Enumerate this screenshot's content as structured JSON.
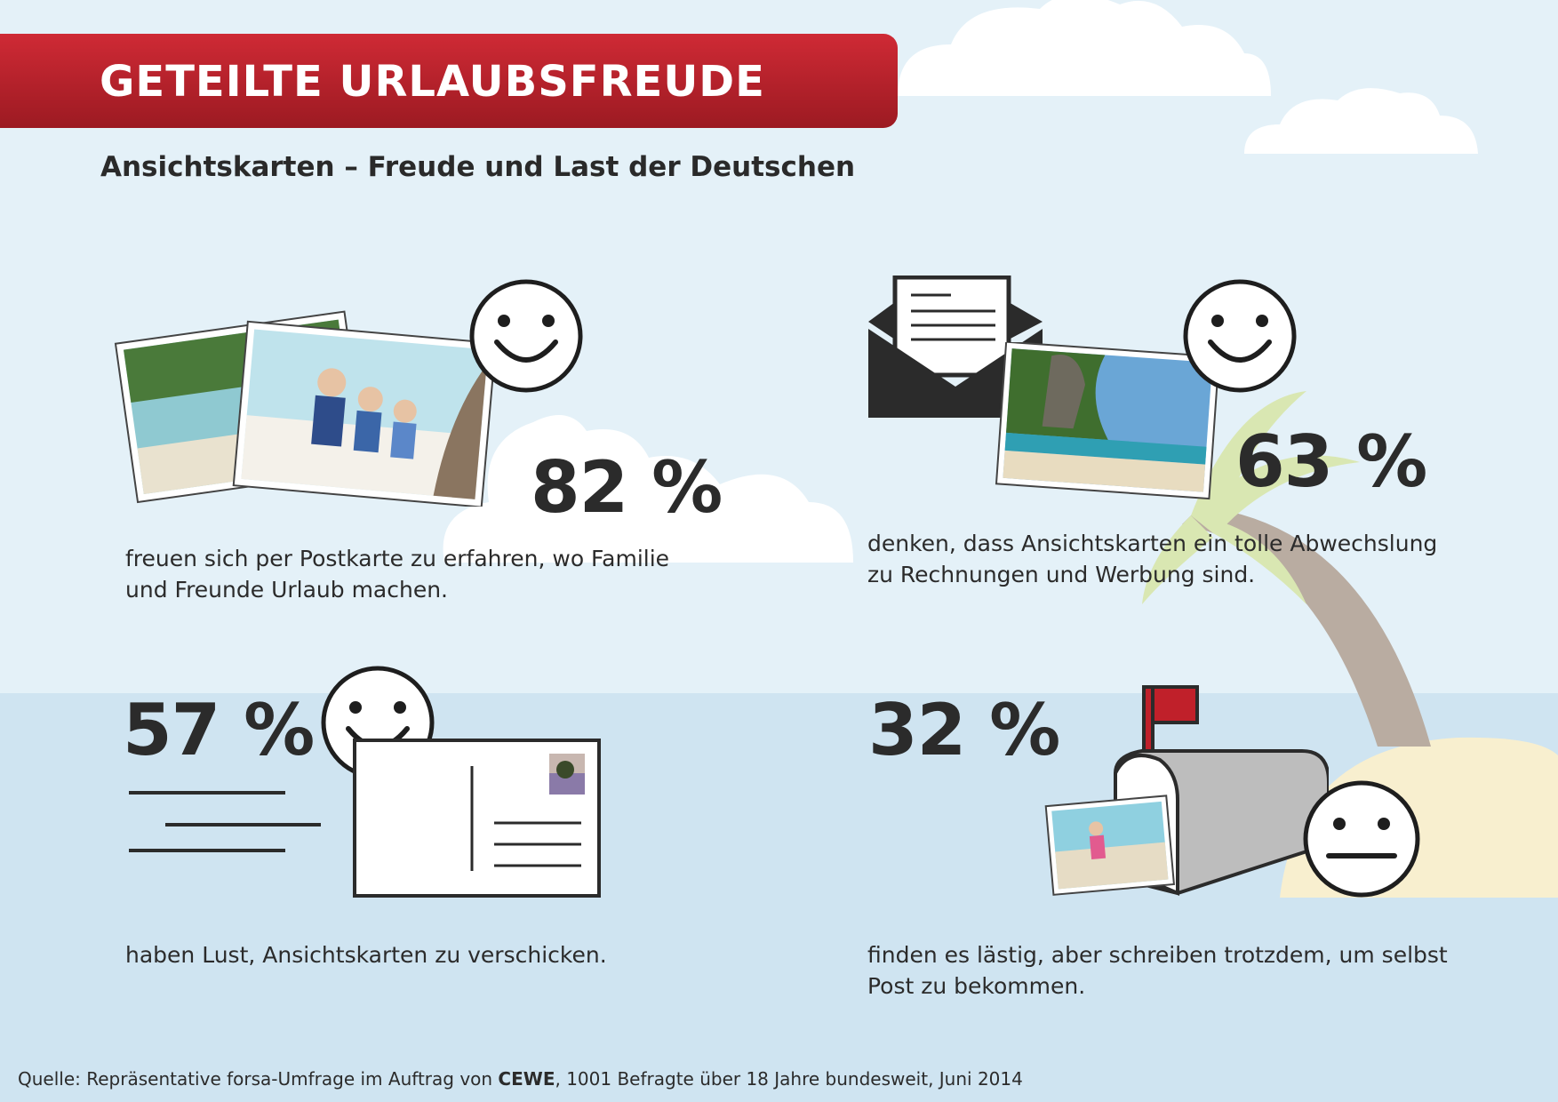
{
  "header": {
    "title": "GETEILTE URLAUBSFREUDE",
    "subtitle": "Ansichtskarten – Freude und Last der Deutschen"
  },
  "stats": [
    {
      "value": "82 %",
      "text_line1": "freuen sich per Postkarte zu erfahren, wo Familie",
      "text_line2": "und Freunde Urlaub machen."
    },
    {
      "value": "63 %",
      "text_line1": "denken, dass Ansichtskarten ein tolle Abwechslung",
      "text_line2": "zu Rechnungen und Werbung sind."
    },
    {
      "value": "57 %",
      "text_line1": "haben Lust, Ansichtskarten zu verschicken.",
      "text_line2": ""
    },
    {
      "value": "32 %",
      "text_line1": "finden es lästig, aber schreiben trotzdem, um selbst",
      "text_line2": "Post zu bekommen."
    }
  ],
  "footer": {
    "source_prefix": "Quelle: Repräsentative forsa-Umfrage im Auftrag von ",
    "brand": "CEWE",
    "source_suffix": ", 1001 Befragte über 18 Jahre bundesweit, Juni 2014"
  },
  "colors": {
    "banner": "#b5202a",
    "sky": "#e4f1f8",
    "sea": "#cfe4f1",
    "text": "#2b2b2b",
    "sand": "#f8efcf",
    "palm_leaf": "#d9e7b2",
    "palm_trunk": "#b9aca1",
    "mailbox_flag": "#c0202a"
  },
  "icons": [
    "smiley-icon",
    "neutral-face-icon",
    "envelope-icon",
    "postcard-icon",
    "mailbox-icon",
    "photo-icon"
  ]
}
